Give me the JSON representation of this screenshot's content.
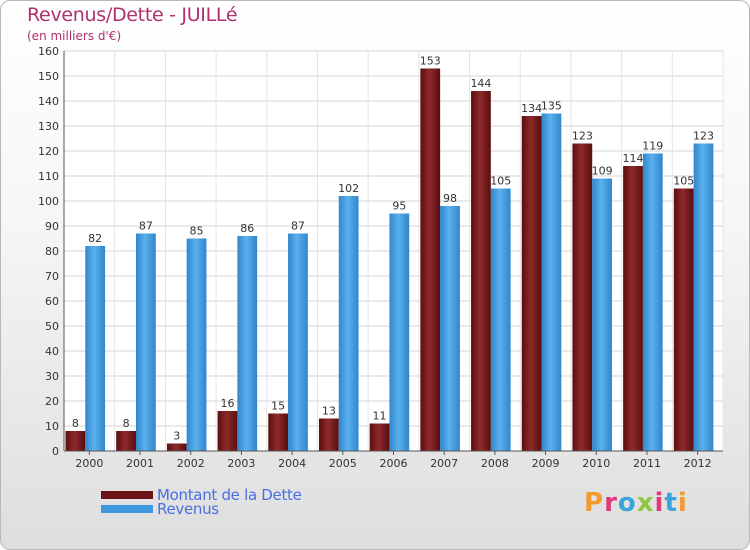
{
  "header": {
    "title": "Revenus/Dette - JUILLé",
    "subtitle": "(en milliers d'€)"
  },
  "legend": [
    {
      "label": "Montant de la Dette",
      "color": "#7a1a1c"
    },
    {
      "label": "Revenus",
      "color": "#3e9ae0"
    }
  ],
  "logo": {
    "text": "Proxiti",
    "colors": [
      "#f29a2e",
      "#e0397a",
      "#3aa4db",
      "#8dc63f",
      "#e0397a",
      "#3aa4db",
      "#f29a2e"
    ]
  },
  "chart_data": {
    "type": "bar",
    "title": "Revenus/Dette - JUILLé",
    "subtitle": "(en milliers d'€)",
    "categories": [
      "2000",
      "2001",
      "2002",
      "2003",
      "2004",
      "2005",
      "2006",
      "2007",
      "2008",
      "2009",
      "2010",
      "2011",
      "2012"
    ],
    "series": [
      {
        "name": "Montant de la Dette",
        "color": "#7a1a1c",
        "values": [
          8,
          8,
          3,
          16,
          15,
          13,
          11,
          153,
          144,
          134,
          123,
          114,
          105
        ]
      },
      {
        "name": "Revenus",
        "color": "#3e9ae0",
        "values": [
          82,
          87,
          85,
          86,
          87,
          102,
          95,
          98,
          105,
          135,
          109,
          119,
          123
        ]
      }
    ],
    "ylim": [
      0,
      160
    ],
    "yticks": [
      0,
      10,
      20,
      30,
      40,
      50,
      60,
      70,
      80,
      90,
      100,
      110,
      120,
      130,
      140,
      150,
      160
    ],
    "grid": true,
    "legend_position": "bottom-left"
  }
}
